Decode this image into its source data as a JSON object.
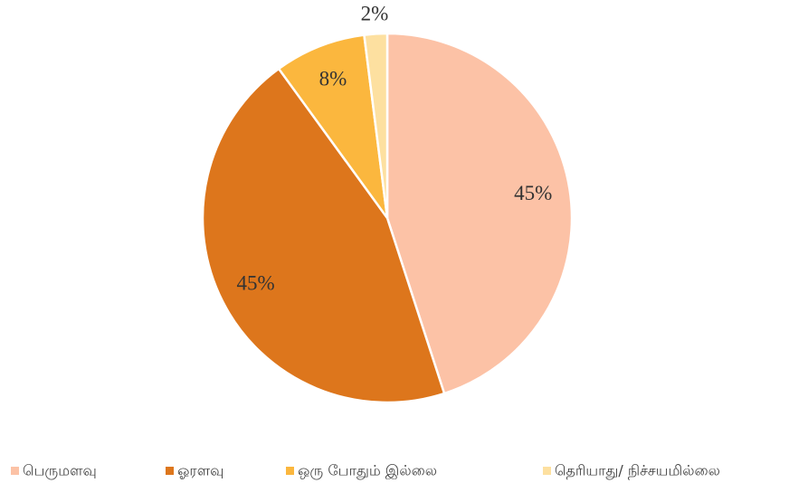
{
  "chart_data": {
    "type": "pie",
    "categories": [
      "பெருமளவு",
      "ஓரளவு",
      "ஒரு போதும் இல்லை",
      "தெரியாது/ நிச்சயமில்லை"
    ],
    "values": [
      45,
      45,
      8,
      2
    ],
    "value_labels": [
      "45%",
      "45%",
      "8%",
      "2%"
    ],
    "colors": [
      "#fcc2a6",
      "#dd761c",
      "#fbb73e",
      "#fde0a0"
    ],
    "legend": "bottom"
  }
}
